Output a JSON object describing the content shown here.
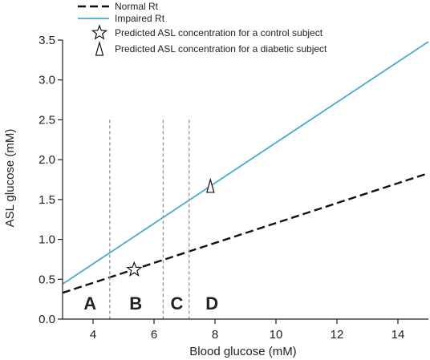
{
  "chart_data": {
    "type": "line",
    "xlabel": "Blood glucose (mM)",
    "ylabel": "ASL glucose (mM)",
    "xlim": [
      3,
      15
    ],
    "ylim": [
      0,
      3.5
    ],
    "x_ticks": [
      4,
      6,
      8,
      10,
      12,
      14
    ],
    "y_ticks": [
      0.0,
      0.5,
      1.0,
      1.5,
      2.0,
      2.5,
      3.0,
      3.5
    ],
    "x_tick_labels": [
      "4",
      "6",
      "8",
      "10",
      "12",
      "14"
    ],
    "y_tick_labels": [
      "0.0",
      "0.5",
      "1.0",
      "1.5",
      "2.0",
      "2.5",
      "3.0",
      "3.5"
    ],
    "series": [
      {
        "name": "Normal Rt",
        "x": [
          3,
          15
        ],
        "y": [
          0.33,
          1.83
        ],
        "color": "#111111",
        "style": "dashed"
      },
      {
        "name": "Impaired Rt",
        "x": [
          3,
          15
        ],
        "y": [
          0.44,
          3.48
        ],
        "color": "#4aa9d6",
        "style": "solid"
      }
    ],
    "markers": [
      {
        "name": "Predicted  ASL concentration for a  control subject",
        "symbol": "star",
        "x": 5.35,
        "y": 0.62
      },
      {
        "name": "Predicted  ASL concentration for a  diabetic subject",
        "symbol": "triangle",
        "x": 7.85,
        "y": 1.67
      }
    ],
    "vertical_lines": [
      4.55,
      6.3,
      7.15
    ],
    "regions": [
      {
        "label": "A",
        "x": 3.9
      },
      {
        "label": "B",
        "x": 5.4
      },
      {
        "label": "C",
        "x": 6.75
      },
      {
        "label": "D",
        "x": 7.9
      }
    ],
    "legend_position": "top-left",
    "grid": false
  }
}
